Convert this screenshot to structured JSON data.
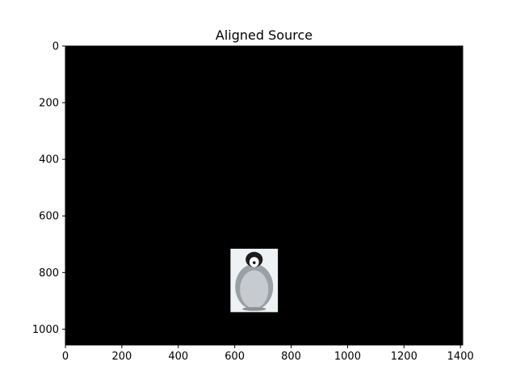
{
  "chart_data": {
    "type": "image",
    "title": "Aligned Source",
    "xlabel": "",
    "ylabel": "",
    "xlim": [
      0,
      1408
    ],
    "ylim": [
      1056,
      0
    ],
    "xticks": [
      0,
      200,
      400,
      600,
      800,
      1000,
      1200,
      1400
    ],
    "yticks": [
      0,
      200,
      400,
      600,
      800,
      1000
    ],
    "grid": false,
    "background_color": "#000000",
    "content": {
      "name": "penguin",
      "x_range": [
        585,
        753
      ],
      "y_range": [
        716,
        940
      ],
      "background_color": "#eef2f4"
    }
  }
}
